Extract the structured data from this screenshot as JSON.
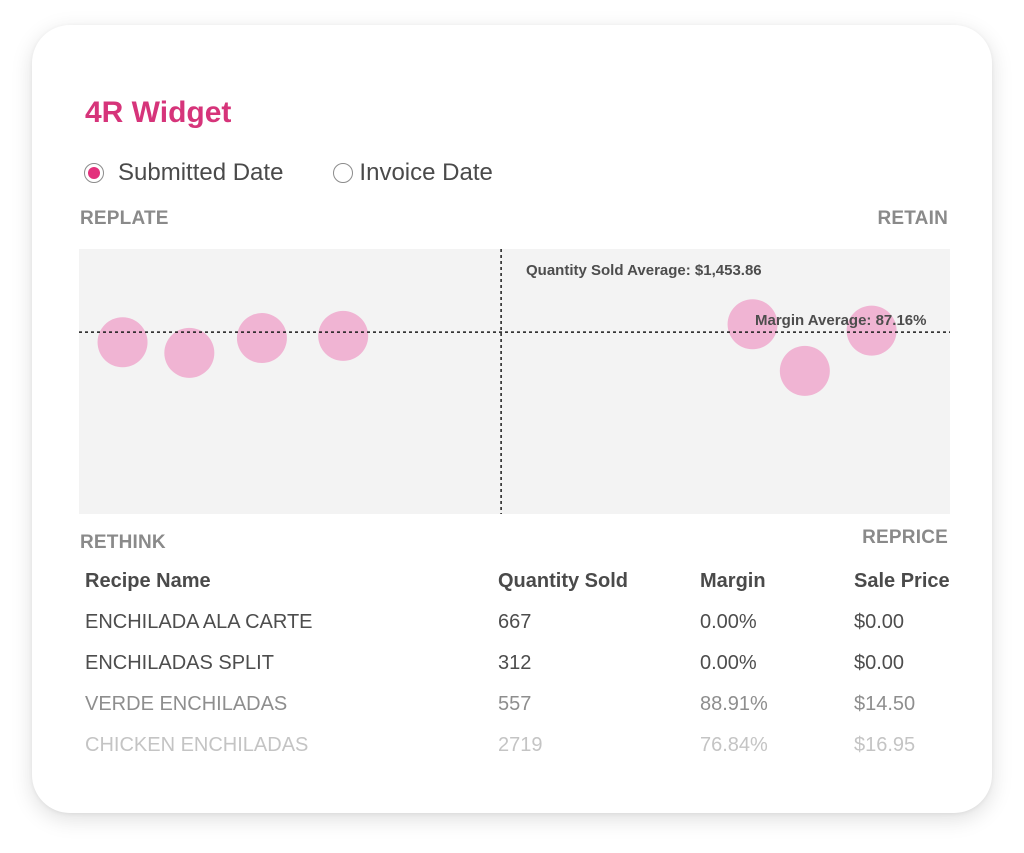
{
  "widget": {
    "title": "4R Widget",
    "accent_color": "#d6347a"
  },
  "date_filter": {
    "options": [
      {
        "label": "Submitted Date",
        "selected": true
      },
      {
        "label": "Invoice Date",
        "selected": false
      }
    ]
  },
  "quadrants": {
    "top_left": "REPLATE",
    "top_right": "RETAIN",
    "bottom_left": "RETHINK",
    "bottom_right": "REPRICE"
  },
  "chart_data": {
    "type": "scatter",
    "x_average_label": "Quantity Sold Average: $1,453.86",
    "y_average_label": "Margin Average: 87.16%",
    "point_color": "#f0b4d3",
    "x_average": 1453.86,
    "y_average": 87.16,
    "xlim": [
      0,
      3000
    ],
    "ylim": [
      70,
      95
    ],
    "points": [
      {
        "x": 150,
        "y": 86.2
      },
      {
        "x": 380,
        "y": 85.2
      },
      {
        "x": 630,
        "y": 86.6
      },
      {
        "x": 910,
        "y": 86.8
      },
      {
        "x": 2320,
        "y": 87.9
      },
      {
        "x": 2500,
        "y": 83.5
      },
      {
        "x": 2730,
        "y": 87.3
      }
    ]
  },
  "table": {
    "headers": [
      "Recipe Name",
      "Quantity Sold",
      "Margin",
      "Sale Price"
    ],
    "rows": [
      [
        "ENCHILADA ALA CARTE",
        "667",
        "0.00%",
        "$0.00"
      ],
      [
        "ENCHILADAS SPLIT",
        "312",
        "0.00%",
        "$0.00"
      ],
      [
        "VERDE ENCHILADAS",
        "557",
        "88.91%",
        "$14.50"
      ],
      [
        "CHICKEN ENCHILADAS",
        "2719",
        "76.84%",
        "$16.95"
      ]
    ]
  }
}
